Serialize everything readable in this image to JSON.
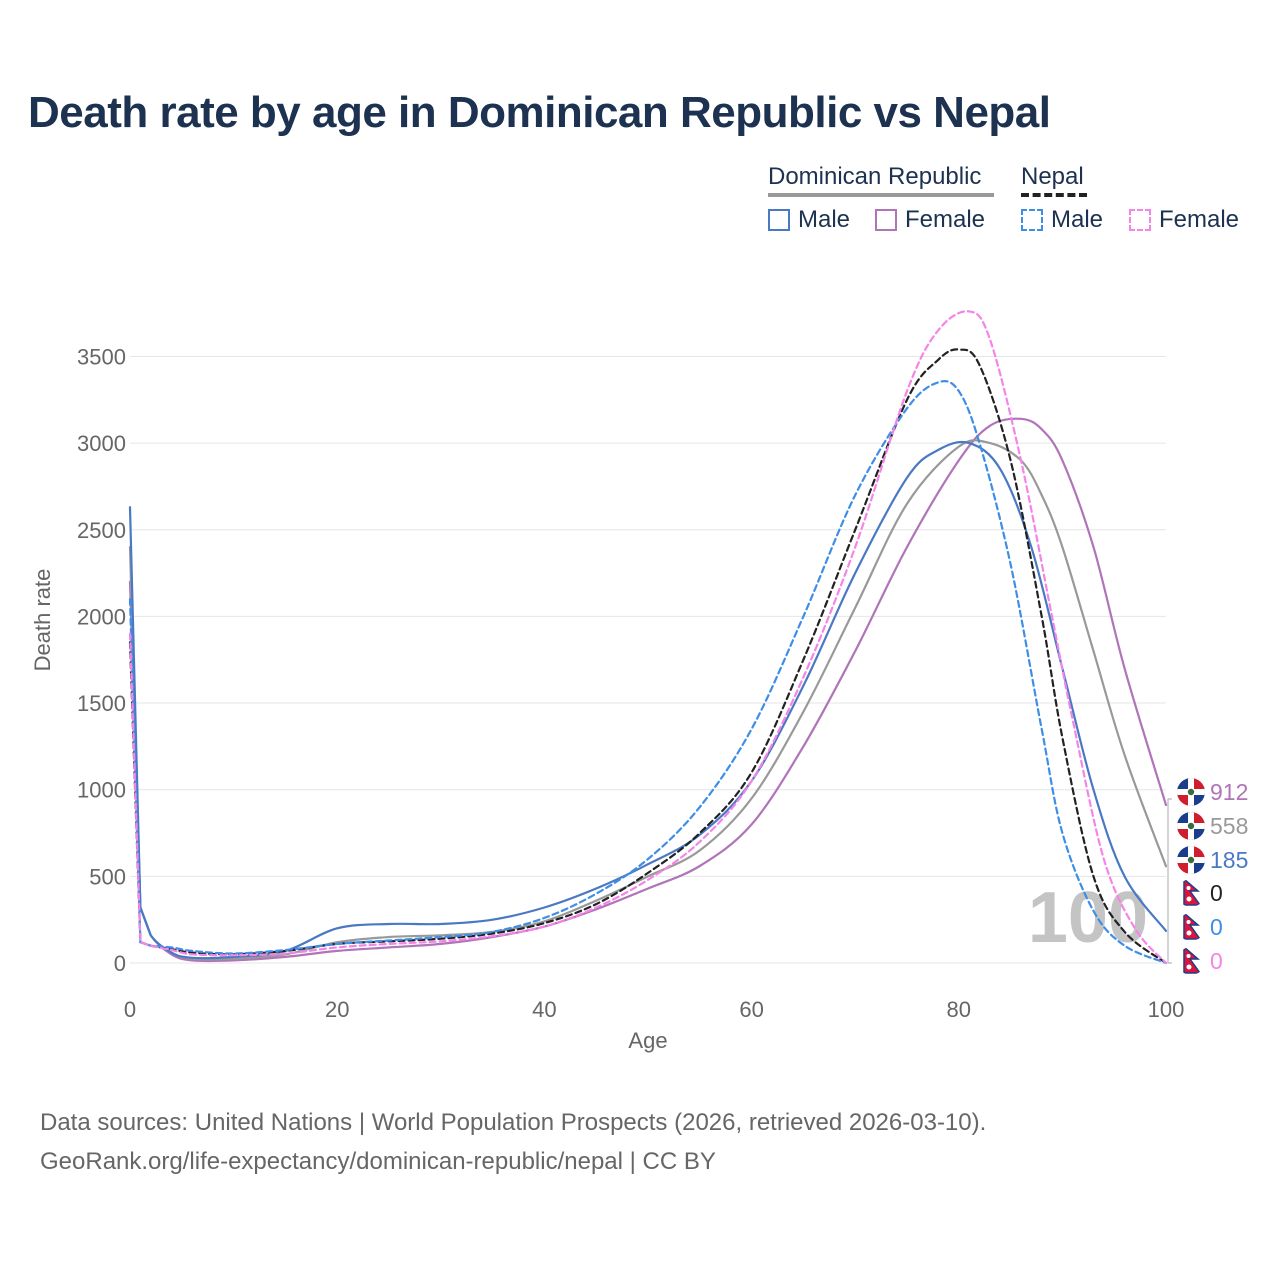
{
  "title": "Death rate by age in Dominican Republic vs Nepal",
  "legend": {
    "groups": [
      {
        "name": "Dominican Republic",
        "style": "solid",
        "color": "#999999"
      },
      {
        "name": "Nepal",
        "style": "dashed",
        "color": "#222222"
      }
    ],
    "items": [
      {
        "label": "Male",
        "color": "#4a79c4",
        "style": "solid"
      },
      {
        "label": "Female",
        "color": "#b074b8",
        "style": "solid"
      },
      {
        "label": "Male",
        "color": "#3e8ee8",
        "style": "dashed"
      },
      {
        "label": "Female",
        "color": "#f584e8",
        "style": "dashed"
      }
    ]
  },
  "watermark": "100",
  "footer": {
    "line1": "Data sources: United Nations | World Population Prospects (2026, retrieved 2026-03-10).",
    "line2": "GeoRank.org/life-expectancy/dominican-republic/nepal | CC BY"
  },
  "chart_data": {
    "type": "line",
    "title": "Death rate by age in Dominican Republic vs Nepal",
    "xlabel": "Age",
    "ylabel": "Death rate",
    "xlim": [
      0,
      100
    ],
    "ylim": [
      0,
      3800
    ],
    "xticks": [
      0,
      20,
      40,
      60,
      80,
      100
    ],
    "yticks": [
      0,
      500,
      1000,
      1500,
      2000,
      2500,
      3000,
      3500
    ],
    "series": [
      {
        "name": "Dominican Republic Female",
        "country": "Dominican Republic",
        "color": "#b074b8",
        "dash": false,
        "x": [
          0,
          1,
          2,
          4,
          6,
          10,
          15,
          20,
          25,
          30,
          35,
          40,
          45,
          50,
          55,
          60,
          65,
          70,
          75,
          80,
          83,
          86,
          88,
          90,
          93,
          96,
          100
        ],
        "y": [
          2200,
          320,
          160,
          50,
          15,
          15,
          35,
          70,
          90,
          110,
          150,
          210,
          310,
          430,
          560,
          800,
          1250,
          1800,
          2400,
          2900,
          3100,
          3140,
          3080,
          2900,
          2400,
          1700,
          912
        ]
      },
      {
        "name": "Dominican Republic Total",
        "country": "Dominican Republic",
        "color": "#999999",
        "dash": false,
        "x": [
          0,
          1,
          2,
          4,
          6,
          10,
          15,
          20,
          25,
          30,
          35,
          40,
          45,
          50,
          55,
          60,
          65,
          70,
          75,
          80,
          83,
          86,
          88,
          90,
          93,
          96,
          100
        ],
        "y": [
          2400,
          320,
          160,
          60,
          25,
          25,
          50,
          120,
          150,
          160,
          180,
          240,
          360,
          500,
          650,
          950,
          1450,
          2050,
          2650,
          2980,
          3000,
          2900,
          2700,
          2400,
          1800,
          1200,
          558
        ]
      },
      {
        "name": "Dominican Republic Male",
        "country": "Dominican Republic",
        "color": "#4a79c4",
        "dash": false,
        "x": [
          0,
          1,
          2,
          4,
          6,
          10,
          15,
          20,
          25,
          30,
          35,
          40,
          45,
          50,
          55,
          60,
          65,
          70,
          75,
          78,
          81,
          84,
          87,
          90,
          93,
          96,
          100
        ],
        "y": [
          2630,
          320,
          160,
          60,
          30,
          35,
          70,
          200,
          225,
          225,
          250,
          320,
          430,
          570,
          740,
          1050,
          1600,
          2250,
          2800,
          2960,
          3000,
          2850,
          2400,
          1700,
          1000,
          500,
          185
        ]
      },
      {
        "name": "Nepal Total",
        "country": "Nepal",
        "color": "#222222",
        "dash": true,
        "x": [
          0,
          1,
          2,
          4,
          6,
          10,
          15,
          20,
          25,
          30,
          35,
          40,
          45,
          50,
          55,
          60,
          65,
          70,
          75,
          78,
          80,
          82,
          85,
          88,
          90,
          93,
          96,
          100
        ],
        "y": [
          1850,
          120,
          100,
          80,
          60,
          50,
          70,
          110,
          125,
          140,
          170,
          230,
          340,
          520,
          750,
          1100,
          1750,
          2500,
          3250,
          3480,
          3540,
          3450,
          2900,
          2000,
          1300,
          500,
          180,
          0
        ]
      },
      {
        "name": "Nepal Male",
        "country": "Nepal",
        "color": "#3e8ee8",
        "dash": true,
        "x": [
          0,
          1,
          2,
          4,
          6,
          10,
          15,
          20,
          25,
          30,
          35,
          40,
          45,
          50,
          55,
          60,
          65,
          70,
          75,
          78,
          80,
          82,
          85,
          88,
          90,
          93,
          96,
          100
        ],
        "y": [
          2100,
          120,
          100,
          90,
          70,
          55,
          75,
          110,
          130,
          150,
          180,
          260,
          400,
          600,
          900,
          1350,
          2000,
          2700,
          3200,
          3350,
          3300,
          3000,
          2300,
          1350,
          750,
          300,
          100,
          0
        ]
      },
      {
        "name": "Nepal Female",
        "country": "Nepal",
        "color": "#f584e8",
        "dash": true,
        "x": [
          0,
          1,
          2,
          4,
          6,
          10,
          15,
          20,
          25,
          30,
          35,
          40,
          45,
          50,
          55,
          60,
          65,
          70,
          75,
          78,
          81,
          83,
          86,
          89,
          91,
          94,
          97,
          100
        ],
        "y": [
          1900,
          120,
          100,
          75,
          50,
          45,
          55,
          90,
          110,
          125,
          155,
          210,
          320,
          480,
          700,
          1050,
          1650,
          2400,
          3300,
          3650,
          3760,
          3600,
          2900,
          2000,
          1400,
          600,
          200,
          0
        ]
      }
    ],
    "end_labels": [
      {
        "value": "912",
        "country": "Dominican Republic",
        "color": "#b074b8"
      },
      {
        "value": "558",
        "country": "Dominican Republic",
        "color": "#999999"
      },
      {
        "value": "185",
        "country": "Dominican Republic",
        "color": "#4a79c4"
      },
      {
        "value": "0",
        "country": "Nepal",
        "color": "#222222"
      },
      {
        "value": "0",
        "country": "Nepal",
        "color": "#3e8ee8"
      },
      {
        "value": "0",
        "country": "Nepal",
        "color": "#f584e8"
      }
    ]
  }
}
